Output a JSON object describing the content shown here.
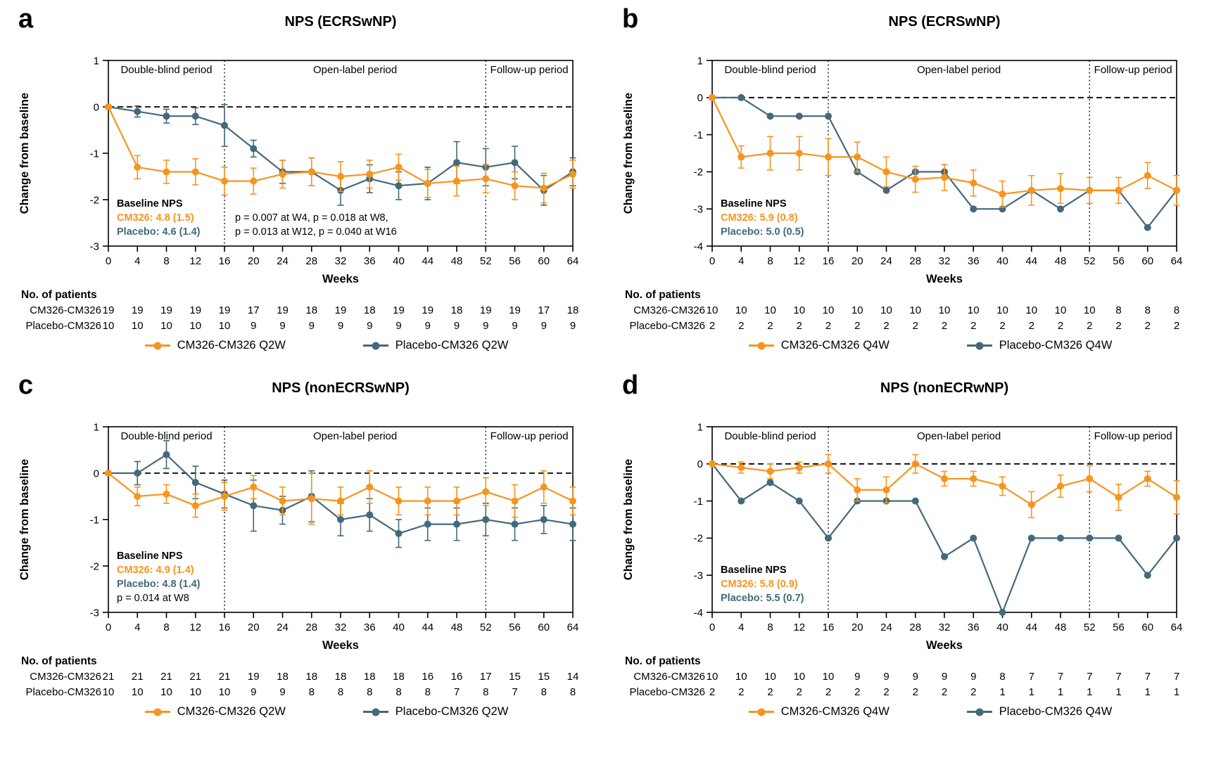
{
  "colors": {
    "cm326": "#F7941E",
    "placebo": "#43697A"
  },
  "shared": {
    "ylabel": "Change from baseline",
    "xlabel": "Weeks",
    "patients_header": "No. of patients",
    "periods": [
      "Double-blind period",
      "Open-label period",
      "Follow-up period"
    ],
    "period_dividers": [
      16,
      52
    ],
    "period_label_centers": [
      8,
      34,
      58
    ],
    "weeks": [
      0,
      4,
      8,
      12,
      16,
      20,
      24,
      28,
      32,
      36,
      40,
      44,
      48,
      52,
      56,
      60,
      64
    ],
    "xlim": [
      0,
      64
    ]
  },
  "chart_data": [
    {
      "type": "line",
      "letter": "a",
      "title": "NPS (ECRSwNP)",
      "ylim": [
        -3,
        1
      ],
      "yticks": [
        1,
        0,
        -1,
        -2,
        -3
      ],
      "baseline": {
        "header": "Baseline NPS",
        "cm326": "CM326: 4.8 (1.5)",
        "placebo": "Placebo: 4.6 (1.4)"
      },
      "pvalues": [
        "p = 0.007 at W4, p = 0.018 at W8,",
        "p = 0.013 at W12, p = 0.040 at W16"
      ],
      "series": [
        {
          "name": "CM326-CM326 Q2W",
          "color_key": "cm326",
          "n_label": "CM326-CM326",
          "values": [
            0,
            -1.3,
            -1.4,
            -1.4,
            -1.6,
            -1.6,
            -1.45,
            -1.4,
            -1.5,
            -1.45,
            -1.3,
            -1.65,
            -1.6,
            -1.55,
            -1.7,
            -1.75,
            -1.45
          ],
          "err": [
            0,
            0.25,
            0.25,
            0.28,
            0.3,
            0.28,
            0.3,
            0.3,
            0.32,
            0.3,
            0.28,
            0.3,
            0.32,
            0.3,
            0.3,
            0.32,
            0.3
          ],
          "n": [
            19,
            19,
            19,
            19,
            19,
            17,
            19,
            18,
            19,
            18,
            19,
            19,
            18,
            19,
            19,
            17,
            18
          ]
        },
        {
          "name": "Placebo-CM326 Q2W",
          "color_key": "placebo",
          "n_label": "Placebo-CM326",
          "values": [
            0,
            -0.1,
            -0.2,
            -0.2,
            -0.4,
            -0.9,
            -1.4,
            -1.4,
            -1.8,
            -1.55,
            -1.7,
            -1.65,
            -1.2,
            -1.3,
            -1.2,
            -1.8,
            -1.4
          ],
          "err": [
            0,
            0.12,
            0.15,
            0.18,
            0.45,
            0.18,
            0.25,
            0.3,
            0.32,
            0.3,
            0.3,
            0.35,
            0.45,
            0.4,
            0.35,
            0.32,
            0.3
          ],
          "n": [
            10,
            10,
            10,
            10,
            10,
            9,
            9,
            9,
            9,
            9,
            9,
            9,
            9,
            9,
            9,
            9,
            9
          ]
        }
      ]
    },
    {
      "type": "line",
      "letter": "b",
      "title": "NPS (ECRSwNP)",
      "ylim": [
        -4,
        1
      ],
      "yticks": [
        1,
        0,
        -1,
        -2,
        -3,
        -4
      ],
      "baseline": {
        "header": "Baseline NPS",
        "cm326": "CM326: 5.9 (0.8)",
        "placebo": "Placebo: 5.0 (0.5)"
      },
      "pvalues": [],
      "series": [
        {
          "name": "CM326-CM326 Q4W",
          "color_key": "cm326",
          "n_label": "CM326-CM326",
          "values": [
            0,
            -1.6,
            -1.5,
            -1.5,
            -1.6,
            -1.6,
            -2.0,
            -2.2,
            -2.15,
            -2.3,
            -2.6,
            -2.5,
            -2.45,
            -2.5,
            -2.5,
            -2.1,
            -2.5
          ],
          "err": [
            0,
            0.3,
            0.45,
            0.45,
            0.5,
            0.4,
            0.4,
            0.35,
            0.35,
            0.35,
            0.35,
            0.4,
            0.4,
            0.35,
            0.35,
            0.35,
            0.4
          ],
          "n": [
            10,
            10,
            10,
            10,
            10,
            10,
            10,
            10,
            10,
            10,
            10,
            10,
            10,
            10,
            8,
            8,
            8
          ]
        },
        {
          "name": "Placebo-CM326 Q4W",
          "color_key": "placebo",
          "n_label": "Placebo-CM326",
          "values": [
            0,
            0,
            -0.5,
            -0.5,
            -0.5,
            -2.0,
            -2.5,
            -2.0,
            -2.0,
            -3.0,
            -3.0,
            -2.5,
            -3.0,
            -2.5,
            -2.5,
            -3.5,
            -2.5
          ],
          "err": [
            0,
            0,
            0,
            0,
            0,
            0,
            0,
            0,
            0,
            0,
            0,
            0,
            0,
            0,
            0,
            0,
            0
          ],
          "n": [
            2,
            2,
            2,
            2,
            2,
            2,
            2,
            2,
            2,
            2,
            2,
            2,
            2,
            2,
            2,
            2,
            2
          ]
        }
      ]
    },
    {
      "type": "line",
      "letter": "c",
      "title": "NPS (nonECRSwNP)",
      "ylim": [
        -3,
        1
      ],
      "yticks": [
        1,
        0,
        -1,
        -2,
        -3
      ],
      "baseline": {
        "header": "Baseline NPS",
        "cm326": "CM326: 4.9 (1.4)",
        "placebo": "Placebo: 4.8 (1.4)"
      },
      "pvalues": [
        "p = 0.014 at W8"
      ],
      "series": [
        {
          "name": "CM326-CM326 Q2W",
          "color_key": "cm326",
          "n_label": "CM326-CM326",
          "values": [
            0,
            -0.5,
            -0.45,
            -0.7,
            -0.5,
            -0.3,
            -0.6,
            -0.55,
            -0.6,
            -0.3,
            -0.6,
            -0.6,
            -0.6,
            -0.4,
            -0.6,
            -0.3,
            -0.6
          ],
          "err": [
            0,
            0.2,
            0.2,
            0.25,
            0.3,
            0.25,
            0.3,
            0.55,
            0.3,
            0.35,
            0.3,
            0.3,
            0.3,
            0.3,
            0.35,
            0.35,
            0.3
          ],
          "n": [
            21,
            21,
            21,
            21,
            21,
            19,
            18,
            18,
            18,
            18,
            18,
            16,
            16,
            17,
            15,
            15,
            14
          ]
        },
        {
          "name": "Placebo-CM326 Q2W",
          "color_key": "placebo",
          "n_label": "Placebo-CM326",
          "values": [
            0,
            0,
            0.4,
            -0.2,
            -0.45,
            -0.7,
            -0.8,
            -0.5,
            -1.0,
            -0.9,
            -1.3,
            -1.1,
            -1.1,
            -1.0,
            -1.1,
            -1.0,
            -1.1
          ],
          "err": [
            0,
            0.25,
            0.3,
            0.35,
            0.3,
            0.55,
            0.3,
            0.55,
            0.35,
            0.35,
            0.3,
            0.35,
            0.35,
            0.35,
            0.35,
            0.3,
            0.35
          ],
          "n": [
            10,
            10,
            10,
            10,
            10,
            9,
            9,
            8,
            8,
            8,
            8,
            8,
            7,
            8,
            7,
            8,
            8
          ]
        }
      ]
    },
    {
      "type": "line",
      "letter": "d",
      "title": "NPS (nonECRwNP)",
      "ylim": [
        -4,
        1
      ],
      "yticks": [
        1,
        0,
        -1,
        -2,
        -3,
        -4
      ],
      "baseline": {
        "header": "Baseline NPS",
        "cm326": "CM326: 5.8 (0.9)",
        "placebo": "Placebo: 5.5 (0.7)"
      },
      "pvalues": [],
      "series": [
        {
          "name": "CM326-CM326 Q4W",
          "color_key": "cm326",
          "n_label": "CM326-CM326",
          "values": [
            0,
            -0.1,
            -0.2,
            -0.1,
            0,
            -0.7,
            -0.7,
            0,
            -0.4,
            -0.4,
            -0.6,
            -1.1,
            -0.6,
            -0.4,
            -0.9,
            -0.4,
            -0.9
          ],
          "err": [
            0,
            0.15,
            0.2,
            0.15,
            0.25,
            0.3,
            0.35,
            0.25,
            0.2,
            0.2,
            0.25,
            0.35,
            0.3,
            0.35,
            0.35,
            0.2,
            0.45
          ],
          "n": [
            10,
            10,
            10,
            10,
            10,
            9,
            9,
            9,
            9,
            9,
            8,
            7,
            7,
            7,
            7,
            7,
            7
          ]
        },
        {
          "name": "Placebo-CM326 Q4W",
          "color_key": "placebo",
          "n_label": "Placebo-CM326",
          "values": [
            0,
            -1.0,
            -0.5,
            -1.0,
            -2.0,
            -1.0,
            -1.0,
            -1.0,
            -2.5,
            -2.0,
            -4.0,
            -2.0,
            -2.0,
            -2.0,
            -2.0,
            -3.0,
            -2.0
          ],
          "err": [
            0,
            0,
            0,
            0,
            0,
            0,
            0,
            0,
            0,
            0,
            0,
            0,
            0,
            0,
            0,
            0,
            0
          ],
          "n": [
            2,
            2,
            2,
            2,
            2,
            2,
            2,
            2,
            2,
            2,
            1,
            1,
            1,
            1,
            1,
            1,
            1
          ]
        }
      ]
    }
  ]
}
